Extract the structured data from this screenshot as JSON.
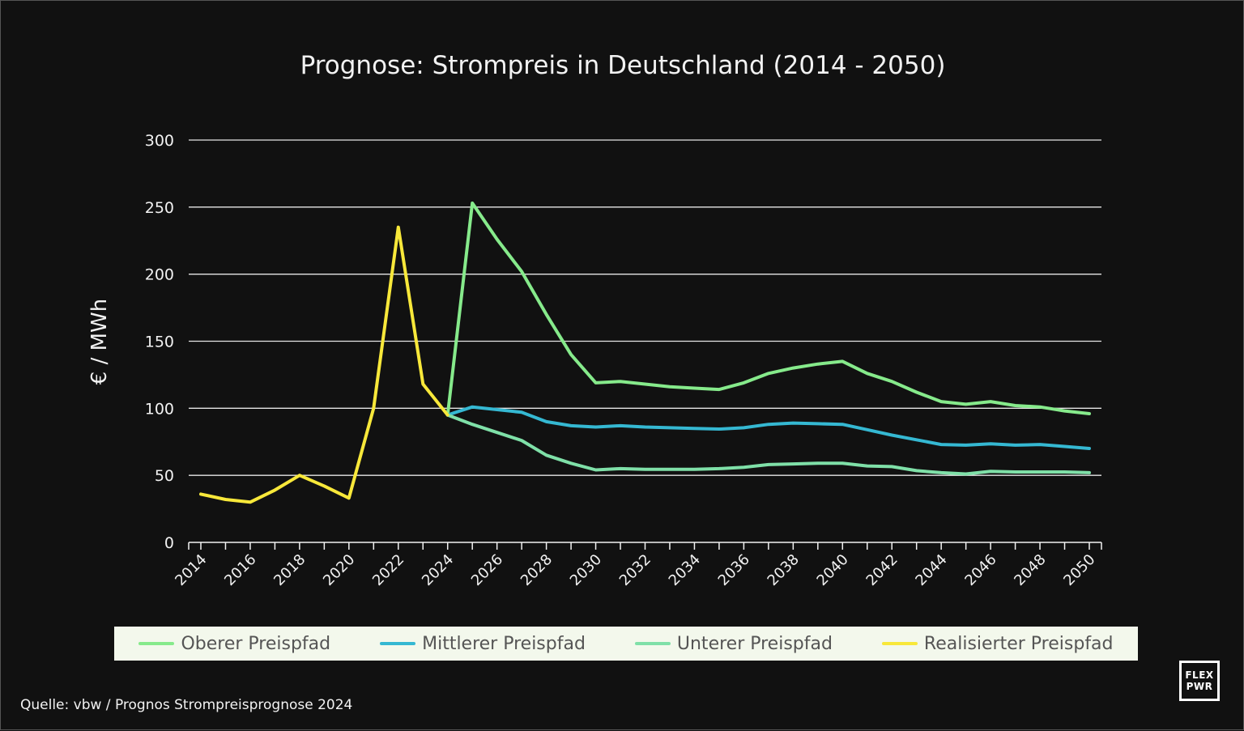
{
  "colors": {
    "background": "#111111",
    "grid": "#e6e6e6",
    "oberer": "#86ea8b",
    "mittlerer": "#35b8d2",
    "unterer": "#7fe0a8",
    "realisiert": "#f8e83a"
  },
  "logo": {
    "line1": "FLEX",
    "line2": "PWR"
  },
  "source": "Quelle: vbw / Prognos Strompreisprognose 2024",
  "chart_data": {
    "type": "line",
    "title": "Prognose: Strompreis in Deutschland (2014 - 2050)",
    "xlabel": "",
    "ylabel": "€ / MWh",
    "xlim": [
      2014,
      2050
    ],
    "ylim": [
      0,
      300
    ],
    "yticks": [
      0,
      50,
      100,
      150,
      200,
      250,
      300
    ],
    "xticks": [
      2014,
      2016,
      2018,
      2020,
      2022,
      2024,
      2026,
      2028,
      2030,
      2032,
      2034,
      2036,
      2038,
      2040,
      2042,
      2044,
      2046,
      2048,
      2050
    ],
    "grid": "horizontal",
    "legend_position": "bottom",
    "series": [
      {
        "name": "Oberer Preispfad",
        "colorKey": "oberer",
        "x": [
          2024,
          2025,
          2026,
          2027,
          2028,
          2029,
          2030,
          2031,
          2032,
          2033,
          2034,
          2035,
          2036,
          2037,
          2038,
          2039,
          2040,
          2041,
          2042,
          2043,
          2044,
          2045,
          2046,
          2047,
          2048,
          2049,
          2050
        ],
        "y": [
          95,
          253,
          226,
          202,
          170,
          140,
          119,
          120,
          118,
          116,
          115,
          114,
          119,
          126,
          130,
          133,
          135,
          126,
          120,
          112,
          105,
          103,
          105,
          102,
          101,
          98,
          96
        ]
      },
      {
        "name": "Mittlerer Preispfad",
        "colorKey": "mittlerer",
        "x": [
          2024,
          2025,
          2026,
          2027,
          2028,
          2029,
          2030,
          2031,
          2032,
          2033,
          2034,
          2035,
          2036,
          2037,
          2038,
          2039,
          2040,
          2041,
          2042,
          2043,
          2044,
          2045,
          2046,
          2047,
          2048,
          2049,
          2050
        ],
        "y": [
          95,
          101,
          99,
          97,
          90,
          87,
          86,
          87,
          86,
          85.5,
          85,
          84.5,
          85.5,
          88,
          89,
          88.5,
          88,
          84,
          80,
          76.5,
          73,
          72.5,
          73.5,
          72.5,
          73,
          71.5,
          70
        ]
      },
      {
        "name": "Unterer Preispfad",
        "colorKey": "unterer",
        "x": [
          2024,
          2025,
          2026,
          2027,
          2028,
          2029,
          2030,
          2031,
          2032,
          2033,
          2034,
          2035,
          2036,
          2037,
          2038,
          2039,
          2040,
          2041,
          2042,
          2043,
          2044,
          2045,
          2046,
          2047,
          2048,
          2049,
          2050
        ],
        "y": [
          95,
          88,
          82,
          76,
          65,
          59,
          54,
          55,
          54.5,
          54.5,
          54.5,
          55,
          56,
          58,
          58.5,
          59,
          59,
          57,
          56.5,
          53.5,
          52,
          51,
          53,
          52.5,
          52.5,
          52.5,
          52
        ]
      },
      {
        "name": "Realisierter Preispfad",
        "colorKey": "realisiert",
        "x": [
          2014,
          2015,
          2016,
          2017,
          2018,
          2019,
          2020,
          2021,
          2022,
          2023,
          2024
        ],
        "y": [
          36,
          32,
          30,
          39,
          50,
          42,
          33,
          100,
          235,
          118,
          95
        ]
      }
    ]
  }
}
